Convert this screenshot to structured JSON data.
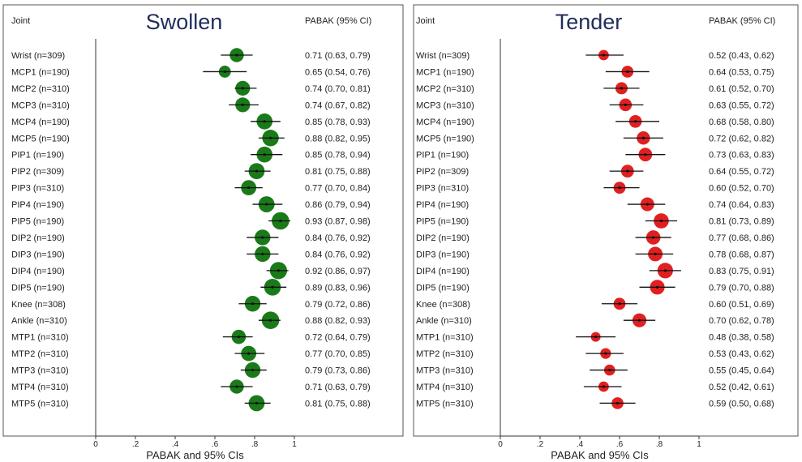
{
  "chart_data": [
    {
      "type": "forest",
      "title": "Swollen",
      "xlabel": "PABAK and 95% CIs",
      "xlim": [
        0,
        1
      ],
      "xticks": [
        0,
        0.2,
        0.4,
        0.6,
        0.8,
        1
      ],
      "xtick_labels": [
        "0",
        ".2",
        ".4",
        ".6",
        ".8",
        "1"
      ],
      "marker_color": "#1a7a1a",
      "col_header_left": "Joint",
      "col_header_right": "PABAK (95% CI)",
      "rows": [
        {
          "joint": "Wrist (n=309)",
          "est": 0.71,
          "lo": 0.63,
          "hi": 0.79,
          "n": 309,
          "text": "0.71 (0.63, 0.79)"
        },
        {
          "joint": "MCP1 (n=190)",
          "est": 0.65,
          "lo": 0.54,
          "hi": 0.76,
          "n": 190,
          "text": "0.65 (0.54, 0.76)"
        },
        {
          "joint": "MCP2 (n=310)",
          "est": 0.74,
          "lo": 0.7,
          "hi": 0.81,
          "n": 310,
          "text": "0.74 (0.70, 0.81)"
        },
        {
          "joint": "MCP3 (n=310)",
          "est": 0.74,
          "lo": 0.67,
          "hi": 0.82,
          "n": 310,
          "text": "0.74 (0.67, 0.82)"
        },
        {
          "joint": "MCP4 (n=190)",
          "est": 0.85,
          "lo": 0.78,
          "hi": 0.93,
          "n": 190,
          "text": "0.85 (0.78, 0.93)"
        },
        {
          "joint": "MCP5 (n=190)",
          "est": 0.88,
          "lo": 0.82,
          "hi": 0.95,
          "n": 190,
          "text": "0.88 (0.82, 0.95)"
        },
        {
          "joint": "PIP1 (n=190)",
          "est": 0.85,
          "lo": 0.78,
          "hi": 0.94,
          "n": 190,
          "text": "0.85 (0.78, 0.94)"
        },
        {
          "joint": "PIP2 (n=309)",
          "est": 0.81,
          "lo": 0.75,
          "hi": 0.88,
          "n": 309,
          "text": "0.81 (0.75, 0.88)"
        },
        {
          "joint": "PIP3 (n=310)",
          "est": 0.77,
          "lo": 0.7,
          "hi": 0.84,
          "n": 310,
          "text": "0.77 (0.70, 0.84)"
        },
        {
          "joint": "PIP4 (n=190)",
          "est": 0.86,
          "lo": 0.79,
          "hi": 0.94,
          "n": 190,
          "text": "0.86 (0.79, 0.94)"
        },
        {
          "joint": "PIP5 (n=190)",
          "est": 0.93,
          "lo": 0.87,
          "hi": 0.98,
          "n": 190,
          "text": "0.93 (0.87, 0.98)"
        },
        {
          "joint": "DIP2 (n=190)",
          "est": 0.84,
          "lo": 0.76,
          "hi": 0.92,
          "n": 190,
          "text": "0.84 (0.76, 0.92)"
        },
        {
          "joint": "DIP3 (n=190)",
          "est": 0.84,
          "lo": 0.76,
          "hi": 0.92,
          "n": 190,
          "text": "0.84 (0.76, 0.92)"
        },
        {
          "joint": "DIP4 (n=190)",
          "est": 0.92,
          "lo": 0.86,
          "hi": 0.97,
          "n": 190,
          "text": "0.92 (0.86, 0.97)"
        },
        {
          "joint": "DIP5 (n=190)",
          "est": 0.89,
          "lo": 0.83,
          "hi": 0.96,
          "n": 190,
          "text": "0.89 (0.83, 0.96)"
        },
        {
          "joint": "Knee (n=308)",
          "est": 0.79,
          "lo": 0.72,
          "hi": 0.86,
          "n": 308,
          "text": "0.79 (0.72, 0.86)"
        },
        {
          "joint": "Ankle (n=310)",
          "est": 0.88,
          "lo": 0.82,
          "hi": 0.93,
          "n": 310,
          "text": "0.88 (0.82, 0.93)"
        },
        {
          "joint": "MTP1 (n=310)",
          "est": 0.72,
          "lo": 0.64,
          "hi": 0.79,
          "n": 310,
          "text": "0.72 (0.64, 0.79)"
        },
        {
          "joint": "MTP2 (n=310)",
          "est": 0.77,
          "lo": 0.7,
          "hi": 0.85,
          "n": 310,
          "text": "0.77 (0.70, 0.85)"
        },
        {
          "joint": "MTP3 (n=310)",
          "est": 0.79,
          "lo": 0.73,
          "hi": 0.86,
          "n": 310,
          "text": "0.79 (0.73, 0.86)"
        },
        {
          "joint": "MTP4 (n=310)",
          "est": 0.71,
          "lo": 0.63,
          "hi": 0.79,
          "n": 310,
          "text": "0.71 (0.63, 0.79)"
        },
        {
          "joint": "MTP5 (n=310)",
          "est": 0.81,
          "lo": 0.75,
          "hi": 0.88,
          "n": 310,
          "text": "0.81 (0.75, 0.88)"
        }
      ]
    },
    {
      "type": "forest",
      "title": "Tender",
      "xlabel": "PABAK and 95% CIs",
      "xlim": [
        0,
        1
      ],
      "xticks": [
        0,
        0.2,
        0.4,
        0.6,
        0.8,
        1
      ],
      "xtick_labels": [
        "0",
        ".2",
        ".4",
        ".6",
        ".8",
        "1"
      ],
      "marker_color": "#e02020",
      "col_header_left": "Joint",
      "col_header_right": "PABAK (95% CI)",
      "rows": [
        {
          "joint": "Wrist (n=309)",
          "est": 0.52,
          "lo": 0.43,
          "hi": 0.62,
          "n": 309,
          "text": "0.52 (0.43, 0.62)"
        },
        {
          "joint": "MCP1 (n=190)",
          "est": 0.64,
          "lo": 0.53,
          "hi": 0.75,
          "n": 190,
          "text": "0.64 (0.53, 0.75)"
        },
        {
          "joint": "MCP2 (n=310)",
          "est": 0.61,
          "lo": 0.52,
          "hi": 0.7,
          "n": 310,
          "text": "0.61 (0.52, 0.70)"
        },
        {
          "joint": "MCP3 (n=310)",
          "est": 0.63,
          "lo": 0.55,
          "hi": 0.72,
          "n": 310,
          "text": "0.63 (0.55, 0.72)"
        },
        {
          "joint": "MCP4 (n=190)",
          "est": 0.68,
          "lo": 0.58,
          "hi": 0.8,
          "n": 190,
          "text": "0.68 (0.58, 0.80)"
        },
        {
          "joint": "MCP5 (n=190)",
          "est": 0.72,
          "lo": 0.62,
          "hi": 0.82,
          "n": 190,
          "text": "0.72 (0.62, 0.82)"
        },
        {
          "joint": "PIP1 (n=190)",
          "est": 0.73,
          "lo": 0.63,
          "hi": 0.83,
          "n": 190,
          "text": "0.73 (0.63, 0.83)"
        },
        {
          "joint": "PIP2 (n=309)",
          "est": 0.64,
          "lo": 0.55,
          "hi": 0.72,
          "n": 309,
          "text": "0.64 (0.55, 0.72)"
        },
        {
          "joint": "PIP3 (n=310)",
          "est": 0.6,
          "lo": 0.52,
          "hi": 0.7,
          "n": 310,
          "text": "0.60 (0.52, 0.70)"
        },
        {
          "joint": "PIP4 (n=190)",
          "est": 0.74,
          "lo": 0.64,
          "hi": 0.83,
          "n": 190,
          "text": "0.74 (0.64, 0.83)"
        },
        {
          "joint": "PIP5 (n=190)",
          "est": 0.81,
          "lo": 0.73,
          "hi": 0.89,
          "n": 190,
          "text": "0.81 (0.73, 0.89)"
        },
        {
          "joint": "DIP2 (n=190)",
          "est": 0.77,
          "lo": 0.68,
          "hi": 0.86,
          "n": 190,
          "text": "0.77 (0.68, 0.86)"
        },
        {
          "joint": "DIP3 (n=190)",
          "est": 0.78,
          "lo": 0.68,
          "hi": 0.87,
          "n": 190,
          "text": "0.78 (0.68, 0.87)"
        },
        {
          "joint": "DIP4 (n=190)",
          "est": 0.83,
          "lo": 0.75,
          "hi": 0.91,
          "n": 190,
          "text": "0.83 (0.75, 0.91)"
        },
        {
          "joint": "DIP5 (n=190)",
          "est": 0.79,
          "lo": 0.7,
          "hi": 0.88,
          "n": 190,
          "text": "0.79 (0.70, 0.88)"
        },
        {
          "joint": "Knee (n=308)",
          "est": 0.6,
          "lo": 0.51,
          "hi": 0.69,
          "n": 308,
          "text": "0.60 (0.51, 0.69)"
        },
        {
          "joint": "Ankle (n=310)",
          "est": 0.7,
          "lo": 0.62,
          "hi": 0.78,
          "n": 310,
          "text": "0.70 (0.62, 0.78)"
        },
        {
          "joint": "MTP1 (n=310)",
          "est": 0.48,
          "lo": 0.38,
          "hi": 0.58,
          "n": 310,
          "text": "0.48 (0.38, 0.58)"
        },
        {
          "joint": "MTP2 (n=310)",
          "est": 0.53,
          "lo": 0.43,
          "hi": 0.62,
          "n": 310,
          "text": "0.53 (0.43, 0.62)"
        },
        {
          "joint": "MTP3 (n=310)",
          "est": 0.55,
          "lo": 0.45,
          "hi": 0.64,
          "n": 310,
          "text": "0.55 (0.45, 0.64)"
        },
        {
          "joint": "MTP4 (n=310)",
          "est": 0.52,
          "lo": 0.42,
          "hi": 0.61,
          "n": 310,
          "text": "0.52 (0.42, 0.61)"
        },
        {
          "joint": "MTP5 (n=310)",
          "est": 0.59,
          "lo": 0.5,
          "hi": 0.68,
          "n": 310,
          "text": "0.59 (0.50, 0.68)"
        }
      ]
    }
  ]
}
